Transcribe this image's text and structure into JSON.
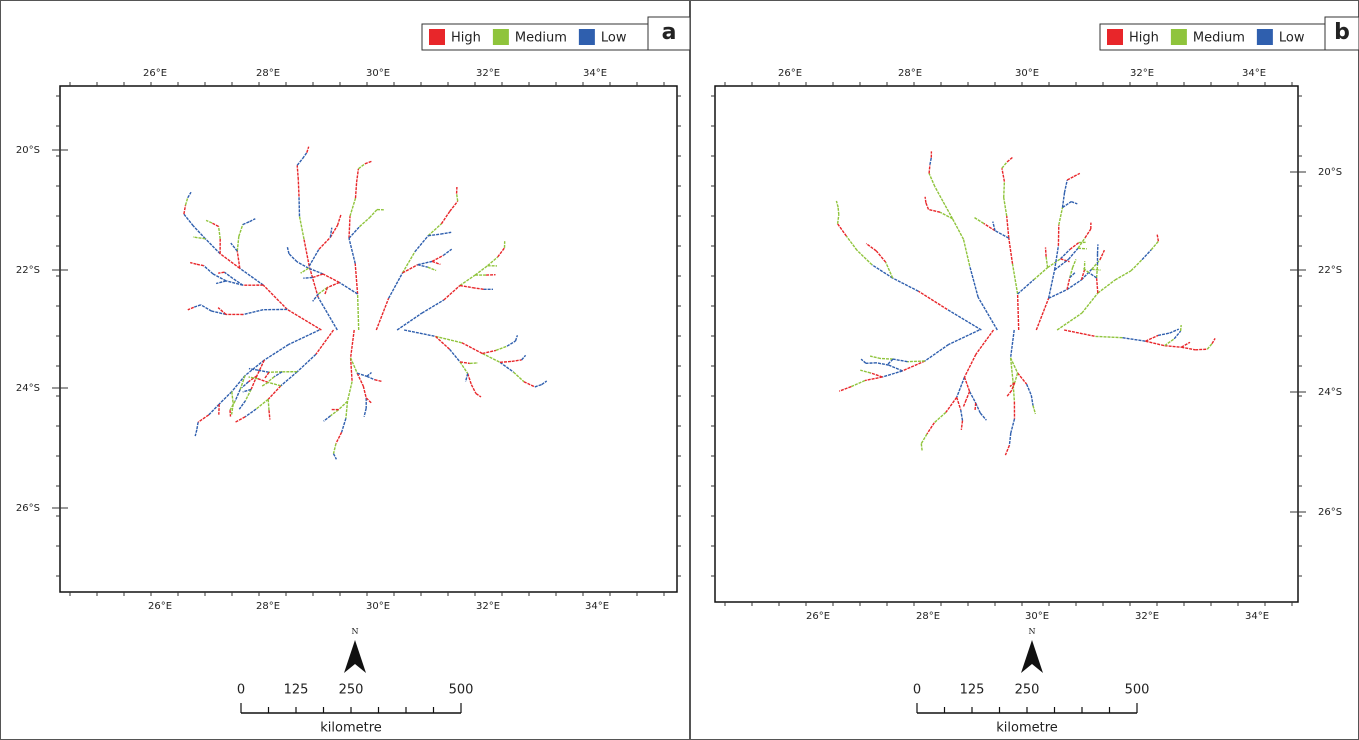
{
  "panels": [
    {
      "label": "a",
      "legend": [
        {
          "name": "High",
          "color": "#e8262a"
        },
        {
          "name": "Medium",
          "color": "#8fc43c"
        },
        {
          "name": "Low",
          "color": "#2f5fae"
        }
      ],
      "x_labels": [
        "26°E",
        "28°E",
        "30°E",
        "32°E",
        "34°E"
      ],
      "y_labels": [
        "20°S",
        "22°S",
        "24°S",
        "26°S"
      ],
      "north": "N",
      "scale": {
        "labels": [
          "0",
          "125",
          "250",
          "500"
        ],
        "unit": "kilometre"
      }
    },
    {
      "label": "b",
      "legend": [
        {
          "name": "High",
          "color": "#e8262a"
        },
        {
          "name": "Medium",
          "color": "#8fc43c"
        },
        {
          "name": "Low",
          "color": "#2f5fae"
        }
      ],
      "x_labels": [
        "26°E",
        "28°E",
        "30°E",
        "32°E",
        "34°E"
      ],
      "y_labels": [
        "20°S",
        "22°S",
        "24°S",
        "26°S"
      ],
      "north": "N",
      "scale": {
        "labels": [
          "0",
          "125",
          "250",
          "500"
        ],
        "unit": "kilometre"
      }
    }
  ]
}
